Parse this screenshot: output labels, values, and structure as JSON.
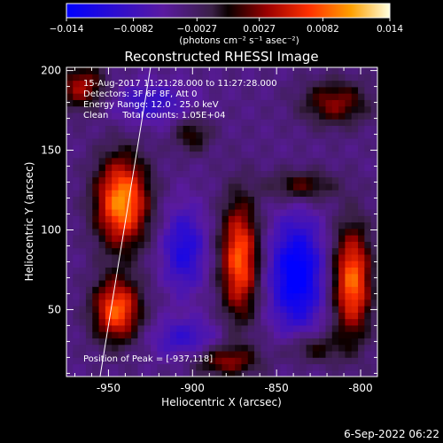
{
  "chart_data": {
    "type": "heatmap",
    "title": "Reconstructed RHESSI Image",
    "xlabel": "Heliocentric X (arcsec)",
    "ylabel": "Heliocentric Y (arcsec)",
    "xlim": [
      -975,
      -790
    ],
    "ylim": [
      8,
      202
    ],
    "x_ticks": [
      -950,
      -900,
      -850,
      -800
    ],
    "y_ticks": [
      50,
      100,
      150,
      200
    ],
    "colorbar": {
      "range": [
        -0.014,
        0.014
      ],
      "ticks": [
        "-0.014",
        "-0.0082",
        "-0.0027",
        "0.0027",
        "0.0082",
        "0.014"
      ],
      "unit_label": "(photons cm⁻² s⁻¹ asec⁻²)"
    },
    "annotations": [
      "15-Aug-2017 11:21:28.000 to 11:27:28.000",
      "Detectors: 3F 6F 8F, Att 0",
      "Energy Range: 12.0 - 25.0 keV",
      "Clean     Total counts: 1.05E+04"
    ],
    "peak_label": "Position of Peak = [-937,118]",
    "peak": [
      -937,
      118
    ],
    "limb_line": [
      [
        -925,
        202
      ],
      [
        -955,
        8
      ]
    ],
    "sources": [
      {
        "x": -942,
        "y": 118,
        "sx": 11,
        "sy": 20,
        "amp": 0.0145
      },
      {
        "x": -945,
        "y": 50,
        "sx": 10,
        "sy": 14,
        "amp": 0.0125
      },
      {
        "x": -872,
        "y": 82,
        "sx": 8,
        "sy": 26,
        "amp": 0.0125
      },
      {
        "x": -805,
        "y": 68,
        "sx": 8,
        "sy": 24,
        "amp": 0.013
      },
      {
        "x": -966,
        "y": 190,
        "sx": 10,
        "sy": 10,
        "amp": 0.008
      },
      {
        "x": -815,
        "y": 180,
        "sx": 14,
        "sy": 10,
        "amp": 0.007
      },
      {
        "x": -835,
        "y": 128,
        "sx": 14,
        "sy": 7,
        "amp": 0.006
      },
      {
        "x": -880,
        "y": 18,
        "sx": 14,
        "sy": 7,
        "amp": 0.007
      },
      {
        "x": -828,
        "y": 26,
        "sx": 12,
        "sy": 7,
        "amp": 0.005
      },
      {
        "x": -900,
        "y": 160,
        "sx": 8,
        "sy": 8,
        "amp": 0.005
      },
      {
        "x": -905,
        "y": 88,
        "sx": 9,
        "sy": 18,
        "amp": -0.007
      },
      {
        "x": -838,
        "y": 72,
        "sx": 11,
        "sy": 24,
        "amp": -0.011
      },
      {
        "x": -905,
        "y": 32,
        "sx": 14,
        "sy": 9,
        "amp": -0.005
      },
      {
        "x": -925,
        "y": 180,
        "sx": 16,
        "sy": 9,
        "amp": -0.005
      }
    ]
  },
  "footer": {
    "date": "6-Sep-2022 06:22"
  }
}
